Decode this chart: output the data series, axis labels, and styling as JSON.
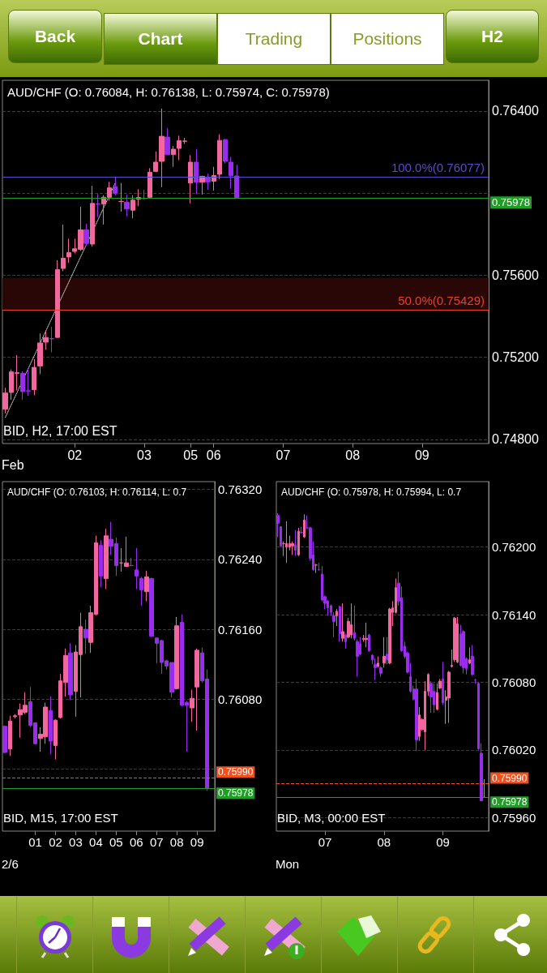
{
  "chart_data": [
    {
      "type": "other",
      "annotations": [
        "Back",
        "Chart",
        "Trading",
        "Positions",
        "H2"
      ]
    },
    {
      "type": "candlestick",
      "title": "AUD/CHF (O: 0.76084, H: 0.76138, L: 0.75974, C: 0.75978)",
      "xlabel": "Feb",
      "annotations": [
        "BID, H2, 17:00 EST"
      ],
      "categories": [
        null,
        null,
        null,
        null,
        null,
        null,
        null,
        null,
        null,
        null,
        null,
        null,
        "02",
        null,
        null,
        null,
        null,
        null,
        null,
        null,
        null,
        null,
        null,
        null,
        "03",
        null,
        null,
        null,
        null,
        null,
        null,
        null,
        "05",
        null,
        null,
        null,
        "06",
        null,
        null,
        null,
        null,
        null,
        null,
        null,
        null,
        null,
        null,
        null,
        "07",
        null,
        null,
        null,
        null,
        null,
        null,
        null,
        null,
        null,
        null,
        null,
        "08",
        null,
        null,
        null,
        null,
        null,
        null,
        null,
        null,
        null,
        null,
        null,
        "09",
        null,
        null,
        null,
        null,
        null,
        null,
        null,
        null,
        null,
        null,
        null
      ],
      "ohlc": [
        [
          0.74947,
          0.75052,
          0.74927,
          0.75026
        ],
        [
          0.75029,
          0.75141,
          0.74993,
          0.75129
        ],
        [
          0.75122,
          0.75211,
          0.75039,
          0.75125
        ],
        [
          0.75122,
          0.75132,
          0.74993,
          0.75033
        ],
        [
          0.75037,
          0.75145,
          0.75013,
          0.75036
        ],
        [
          0.75042,
          0.75191,
          0.75015,
          0.75151
        ],
        [
          0.75158,
          0.75316,
          0.75118,
          0.7527
        ],
        [
          0.75274,
          0.7533,
          0.75237,
          0.75297
        ],
        [
          0.75291,
          0.75349,
          0.75224,
          0.7529
        ],
        [
          0.75297,
          0.75673,
          0.75297,
          0.75627
        ],
        [
          0.75633,
          0.75847,
          0.7562,
          0.75683
        ],
        [
          0.75689,
          0.75778,
          0.7566,
          0.7571
        ],
        [
          0.75716,
          0.75778,
          0.75706,
          0.75729
        ],
        [
          0.75726,
          0.75934,
          0.75719,
          0.75821
        ],
        [
          0.75821,
          0.75851,
          0.75745,
          0.75755
        ],
        [
          0.75752,
          0.76036,
          0.75739,
          0.7595
        ],
        [
          0.75947,
          0.75996,
          0.75884,
          0.75946
        ],
        [
          0.75947,
          0.7599,
          0.75847,
          0.7598
        ],
        [
          0.7598,
          0.76055,
          0.75963,
          0.76026
        ],
        [
          0.76032,
          0.76079,
          0.7599,
          0.76
        ],
        [
          0.75959,
          0.76049,
          0.7591,
          0.7596
        ],
        [
          0.75956,
          0.75992,
          0.75887,
          0.75923
        ],
        [
          0.75917,
          0.7599,
          0.75877,
          0.75966
        ],
        [
          0.7597,
          0.76019,
          0.75937,
          0.75979
        ],
        [
          0.75975,
          0.76016,
          0.7597,
          0.75973
        ],
        [
          0.7598,
          0.76122,
          0.75976,
          0.76102
        ],
        [
          0.76106,
          0.76203,
          0.76102,
          0.76151
        ],
        [
          0.76155,
          0.76412,
          0.76029,
          0.76277
        ],
        [
          0.76273,
          0.76317,
          0.76185,
          0.76188
        ],
        [
          0.76188,
          0.7623,
          0.76128,
          0.76214
        ],
        [
          0.76218,
          0.7628,
          0.76161,
          0.76256
        ],
        [
          0.76253,
          0.76269,
          0.7624,
          0.76254
        ],
        [
          0.76049,
          0.76185,
          0.7595,
          0.76151
        ],
        [
          0.76151,
          0.76214,
          0.75996,
          0.76053
        ],
        [
          0.76053,
          0.76085,
          0.75993,
          0.76082
        ],
        [
          0.76078,
          0.76095,
          0.76016,
          0.76055
        ],
        [
          0.76058,
          0.76128,
          0.76012,
          0.76086
        ],
        [
          0.76092,
          0.76287,
          0.76069,
          0.76257
        ],
        [
          0.76261,
          0.76264,
          0.76145,
          0.76155
        ],
        [
          0.76151,
          0.76177,
          0.76022,
          0.76085
        ],
        [
          0.76084,
          0.76138,
          0.75974,
          0.75978
        ],
        null,
        null,
        null,
        null,
        null,
        null,
        null,
        null,
        null,
        null,
        null,
        null,
        null,
        null,
        null,
        null,
        null,
        null,
        null,
        null,
        null,
        null,
        null,
        null,
        null,
        null,
        null,
        null,
        null,
        null,
        null,
        null,
        null,
        null,
        null,
        null,
        null,
        null,
        null,
        null,
        null,
        null,
        null
      ],
      "series": [
        {
          "type": "line",
          "color": "#cfcfcf",
          "line_style": "dotted",
          "values": [
            0.74907,
            null,
            null,
            null,
            null,
            null,
            null,
            null,
            null,
            null,
            null,
            null,
            null,
            null,
            null,
            null,
            null,
            null,
            null,
            0.7605,
            null,
            null,
            null,
            null,
            null,
            null,
            null,
            null,
            null,
            null,
            null,
            null,
            null,
            null,
            null,
            null,
            null,
            null,
            null,
            null,
            null,
            null,
            null,
            null,
            null,
            null,
            null,
            null,
            null,
            null,
            null,
            null,
            null,
            null,
            null,
            null,
            null,
            null,
            null,
            null,
            null,
            null,
            null,
            null,
            null,
            null,
            null,
            null,
            null,
            null,
            null,
            null,
            null,
            null,
            null,
            null,
            null,
            null,
            null,
            null,
            null,
            null,
            null,
            null
          ]
        }
      ],
      "ylim": [
        0.7478,
        0.7655
      ],
      "yticks": [
        {
          "value": 0.748,
          "label": "0.74800"
        },
        {
          "value": 0.752,
          "label": "0.75200"
        },
        {
          "value": 0.756,
          "label": "0.75600"
        },
        {
          "value": 0.76,
          "label": null
        },
        {
          "value": 0.764,
          "label": "0.76400"
        }
      ],
      "grid": "y",
      "bands": [
        {
          "axis": "y",
          "from": 0.75429,
          "to": 0.75587,
          "color": "#2a0707"
        }
      ],
      "ref_lines": [
        {
          "axis": "y",
          "value": 0.76077,
          "label": "100.0%(0.76077)",
          "color": "#5a4ad0",
          "line_style": "solid"
        },
        {
          "axis": "y",
          "value": 0.75429,
          "label": "50.0%(0.75429)",
          "color": "#e8402a",
          "line_style": "solid"
        },
        {
          "axis": "y",
          "value": 0.75978,
          "label": "0.75978",
          "color": "#1f9e25"
        }
      ]
    },
    {
      "type": "candlestick",
      "title": "AUD/CHF (O: 0.76103, H: 0.76114, L: 0.7",
      "xlabel": "2/6",
      "annotations": [
        "BID, M15, 17:00 EST"
      ],
      "categories": [
        null,
        null,
        null,
        null,
        null,
        null,
        "01",
        null,
        null,
        null,
        "02",
        null,
        null,
        null,
        "03",
        null,
        null,
        null,
        "04",
        null,
        null,
        null,
        "05",
        null,
        null,
        null,
        "06",
        null,
        null,
        null,
        "07",
        null,
        null,
        null,
        "08",
        null,
        null,
        null,
        "09",
        null,
        null,
        null
      ],
      "ohlc": [
        [
          0.76049,
          0.7605,
          0.76018,
          0.76019
        ],
        [
          0.76023,
          0.76061,
          0.76015,
          0.76055
        ],
        [
          0.7606,
          0.76063,
          0.76058,
          0.76061
        ],
        [
          0.76062,
          0.76075,
          0.76036,
          0.76068
        ],
        [
          0.76065,
          0.76088,
          0.76063,
          0.76073
        ],
        [
          0.76077,
          0.76094,
          0.76048,
          0.7605
        ],
        [
          0.76053,
          0.76053,
          0.76029,
          0.76029
        ],
        [
          0.76035,
          0.76048,
          0.7602,
          0.7604
        ],
        [
          0.76037,
          0.76076,
          0.76029,
          0.76071
        ],
        [
          0.76067,
          0.76083,
          0.76017,
          0.76032
        ],
        [
          0.76027,
          0.76057,
          0.76011,
          0.76056
        ],
        [
          0.76059,
          0.76109,
          0.76058,
          0.76101
        ],
        [
          0.76099,
          0.76138,
          0.76083,
          0.7613
        ],
        [
          0.76133,
          0.76144,
          0.76079,
          0.76085
        ],
        [
          0.76089,
          0.76142,
          0.7606,
          0.76134
        ],
        [
          0.76131,
          0.76179,
          0.76082,
          0.76163
        ],
        [
          0.7616,
          0.76171,
          0.76132,
          0.7615
        ],
        [
          0.76145,
          0.76187,
          0.76133,
          0.76179
        ],
        [
          0.76177,
          0.76267,
          0.76176,
          0.76259
        ],
        [
          0.76256,
          0.76262,
          0.76208,
          0.76221
        ],
        [
          0.76218,
          0.76275,
          0.76206,
          0.76267
        ],
        [
          0.76263,
          0.76283,
          0.76245,
          0.76255
        ],
        [
          0.76258,
          0.76265,
          0.76221,
          0.76233
        ],
        [
          0.76236,
          0.76253,
          0.76226,
          0.76236
        ],
        [
          0.76232,
          0.76266,
          0.76232,
          0.76236
        ],
        [
          0.76233,
          0.76242,
          0.76232,
          0.76233
        ],
        [
          0.76228,
          0.76253,
          0.76206,
          0.76221
        ],
        [
          0.76218,
          0.7622,
          0.76187,
          0.76205
        ],
        [
          0.76203,
          0.76227,
          0.76192,
          0.7622
        ],
        [
          0.76218,
          0.76219,
          0.76151,
          0.76152
        ],
        [
          0.7615,
          0.7615,
          0.76121,
          0.76144
        ],
        [
          0.76147,
          0.76148,
          0.76109,
          0.76122
        ],
        [
          0.76124,
          0.76125,
          0.76114,
          0.76118
        ],
        [
          0.76122,
          0.76122,
          0.76082,
          0.76088
        ],
        [
          0.76092,
          0.76174,
          0.76091,
          0.76164
        ],
        [
          0.76168,
          0.76177,
          0.76072,
          0.76073
        ],
        [
          0.76076,
          0.76078,
          0.7602,
          0.76073
        ],
        [
          0.7607,
          0.76091,
          0.76054,
          0.76081
        ],
        [
          0.76094,
          0.76138,
          0.76044,
          0.76136
        ],
        [
          0.76133,
          0.76139,
          0.76099,
          0.76101
        ],
        [
          0.76103,
          0.76114,
          0.75975,
          0.75978
        ],
        null
      ],
      "ylim": [
        0.75929,
        0.76329
      ],
      "yticks": [
        {
          "value": 0.76,
          "label": null
        },
        {
          "value": 0.7608,
          "label": "0.76080"
        },
        {
          "value": 0.7616,
          "label": "0.76160"
        },
        {
          "value": 0.7624,
          "label": "0.76240"
        },
        {
          "value": 0.7632,
          "label": "0.76320"
        }
      ],
      "grid": "y",
      "ref_lines": [
        {
          "axis": "y",
          "value": 0.7599,
          "label": "0.75990",
          "color": "#f0501e",
          "line_style": "dashed"
        },
        {
          "axis": "y",
          "value": 0.75978,
          "label": "0.75978",
          "color": "#1f9e25"
        }
      ]
    },
    {
      "type": "candlestick",
      "title": "AUD/CHF (O: 0.75978, H: 0.75994, L: 0.7",
      "xlabel": "Mon",
      "annotations": [
        "BID, M3, 00:00 EST"
      ],
      "categories": [
        null,
        null,
        null,
        null,
        null,
        null,
        null,
        null,
        null,
        null,
        null,
        null,
        null,
        null,
        null,
        null,
        "07",
        null,
        null,
        null,
        null,
        null,
        null,
        null,
        null,
        null,
        null,
        null,
        null,
        null,
        null,
        null,
        null,
        null,
        null,
        null,
        "08",
        null,
        null,
        null,
        null,
        null,
        null,
        null,
        null,
        null,
        null,
        null,
        null,
        null,
        null,
        null,
        null,
        null,
        null,
        null,
        "09",
        null,
        null,
        null,
        null,
        null,
        null,
        null,
        null,
        null,
        null,
        null,
        null,
        null,
        null,
        null
      ],
      "ohlc": [
        [
          0.76228,
          0.7623,
          0.76209,
          0.76221
        ],
        [
          0.76218,
          0.76218,
          0.762,
          0.76201
        ],
        [
          0.76203,
          0.76205,
          0.76192,
          0.76203
        ],
        [
          0.762,
          0.76223,
          0.76186,
          0.76203
        ],
        [
          0.762,
          0.7621,
          0.76197,
          0.76203
        ],
        [
          0.76201,
          0.76205,
          0.76193,
          0.76203
        ],
        [
          0.76202,
          0.76215,
          0.76192,
          0.76197
        ],
        [
          0.76193,
          0.76217,
          0.76192,
          0.76214
        ],
        [
          0.76213,
          0.76218,
          0.76212,
          0.76213
        ],
        [
          0.76209,
          0.76229,
          0.76208,
          0.76224
        ],
        [
          0.76217,
          0.76228,
          0.76216,
          0.76217
        ],
        [
          0.76217,
          0.76218,
          0.76188,
          0.7619
        ],
        [
          0.76193,
          0.76205,
          0.76179,
          0.7618
        ],
        [
          0.76184,
          0.76185,
          0.76177,
          0.76184
        ],
        [
          0.7618,
          0.76186,
          0.76179,
          0.7618
        ],
        [
          0.76176,
          0.76183,
          0.76152,
          0.76153
        ],
        [
          0.76156,
          0.76157,
          0.76145,
          0.7615
        ],
        [
          0.76152,
          0.76153,
          0.76139,
          0.76146
        ],
        [
          0.76148,
          0.76149,
          0.76139,
          0.76142
        ],
        [
          0.76139,
          0.76142,
          0.7612,
          0.76134
        ],
        [
          0.76139,
          0.76145,
          0.7613,
          0.76143
        ],
        [
          0.76147,
          0.76148,
          0.76116,
          0.76123
        ],
        [
          0.76119,
          0.7615,
          0.76116,
          0.76125
        ],
        [
          0.76122,
          0.76123,
          0.7611,
          0.76116
        ],
        [
          0.7612,
          0.76137,
          0.76119,
          0.76134
        ],
        [
          0.76122,
          0.7615,
          0.76119,
          0.76131
        ],
        [
          0.76124,
          0.76148,
          0.76117,
          0.76119
        ],
        [
          0.76116,
          0.76118,
          0.76085,
          0.76103
        ],
        [
          0.76114,
          0.7612,
          0.76104,
          0.76105
        ],
        [
          0.76118,
          0.76122,
          0.76116,
          0.76119
        ],
        [
          0.76118,
          0.76133,
          0.76111,
          0.76119
        ],
        [
          0.76122,
          0.76123,
          0.76107,
          0.76108
        ],
        [
          0.76104,
          0.76105,
          0.76096,
          0.761
        ],
        [
          0.76096,
          0.76101,
          0.76082,
          0.76093
        ],
        [
          0.76094,
          0.76103,
          0.76093,
          0.76097
        ],
        [
          0.76093,
          0.76094,
          0.76085,
          0.76088
        ],
        [
          0.76097,
          0.7612,
          0.76093,
          0.76103
        ],
        [
          0.76105,
          0.7612,
          0.76096,
          0.761
        ],
        [
          0.76097,
          0.76146,
          0.76096,
          0.76145
        ],
        [
          0.76142,
          0.76152,
          0.7613,
          0.76146
        ],
        [
          0.76142,
          0.76172,
          0.76141,
          0.76164
        ],
        [
          0.76168,
          0.76178,
          0.76148,
          0.76152
        ],
        [
          0.76155,
          0.76165,
          0.76107,
          0.76108
        ],
        [
          0.76112,
          0.76116,
          0.76101,
          0.76103
        ],
        [
          0.76106,
          0.76107,
          0.76088,
          0.76089
        ],
        [
          0.76085,
          0.76097,
          0.76071,
          0.76072
        ],
        [
          0.76074,
          0.76077,
          0.76064,
          0.76065
        ],
        [
          0.76074,
          0.76083,
          0.76019,
          0.76029
        ],
        [
          0.76032,
          0.76058,
          0.76028,
          0.76051
        ],
        [
          0.76038,
          0.76048,
          0.76037,
          0.76047
        ],
        [
          0.76036,
          0.76081,
          0.7602,
          0.76072
        ],
        [
          0.76072,
          0.76088,
          0.76068,
          0.76087
        ],
        [
          0.76079,
          0.76081,
          0.76053,
          0.76067
        ],
        [
          0.76072,
          0.76079,
          0.76053,
          0.7606
        ],
        [
          0.76056,
          0.76079,
          0.76055,
          0.76071
        ],
        [
          0.76075,
          0.76083,
          0.76074,
          0.76081
        ],
        [
          0.76083,
          0.76098,
          0.7606,
          0.76062
        ],
        [
          0.76064,
          0.76073,
          0.76043,
          0.76067
        ],
        [
          0.76066,
          0.7609,
          0.76044,
          0.76089
        ],
        [
          0.76094,
          0.76109,
          0.76093,
          0.76095
        ],
        [
          0.761,
          0.76138,
          0.76098,
          0.76137
        ],
        [
          0.76098,
          0.76138,
          0.76097,
          0.76132
        ],
        [
          0.76123,
          0.76131,
          0.76094,
          0.76095
        ],
        [
          0.76125,
          0.76126,
          0.76088,
          0.76093
        ],
        [
          0.76101,
          0.76102,
          0.76087,
          0.76092
        ],
        [
          0.76097,
          0.76111,
          0.76096,
          0.761
        ],
        [
          0.76103,
          0.76113,
          0.76086,
          0.76087
        ],
        [
          0.76082,
          0.76083,
          0.76079,
          0.76082
        ],
        [
          0.76079,
          0.7608,
          0.7602,
          0.76021
        ],
        [
          0.76017,
          0.76026,
          0.75975,
          0.75975
        ],
        [
          0.75978,
          0.75994,
          0.75978,
          0.75978
        ],
        null
      ],
      "ylim": [
        0.75948,
        0.76258
      ],
      "yticks": [
        {
          "value": 0.7596,
          "label": "0.75960"
        },
        {
          "value": 0.7602,
          "label": "0.76020"
        },
        {
          "value": 0.7608,
          "label": "0.76080"
        },
        {
          "value": 0.7614,
          "label": "0.76140"
        },
        {
          "value": 0.762,
          "label": "0.76200"
        }
      ],
      "grid": "y",
      "ref_lines": [
        {
          "axis": "y",
          "value": 0.7599,
          "label": "0.75990",
          "color": "#f0501e",
          "line_style": "dashed"
        },
        {
          "axis": "y",
          "value": 0.75978,
          "label": "0.75978",
          "color": "#1f9e25"
        }
      ]
    }
  ]
}
